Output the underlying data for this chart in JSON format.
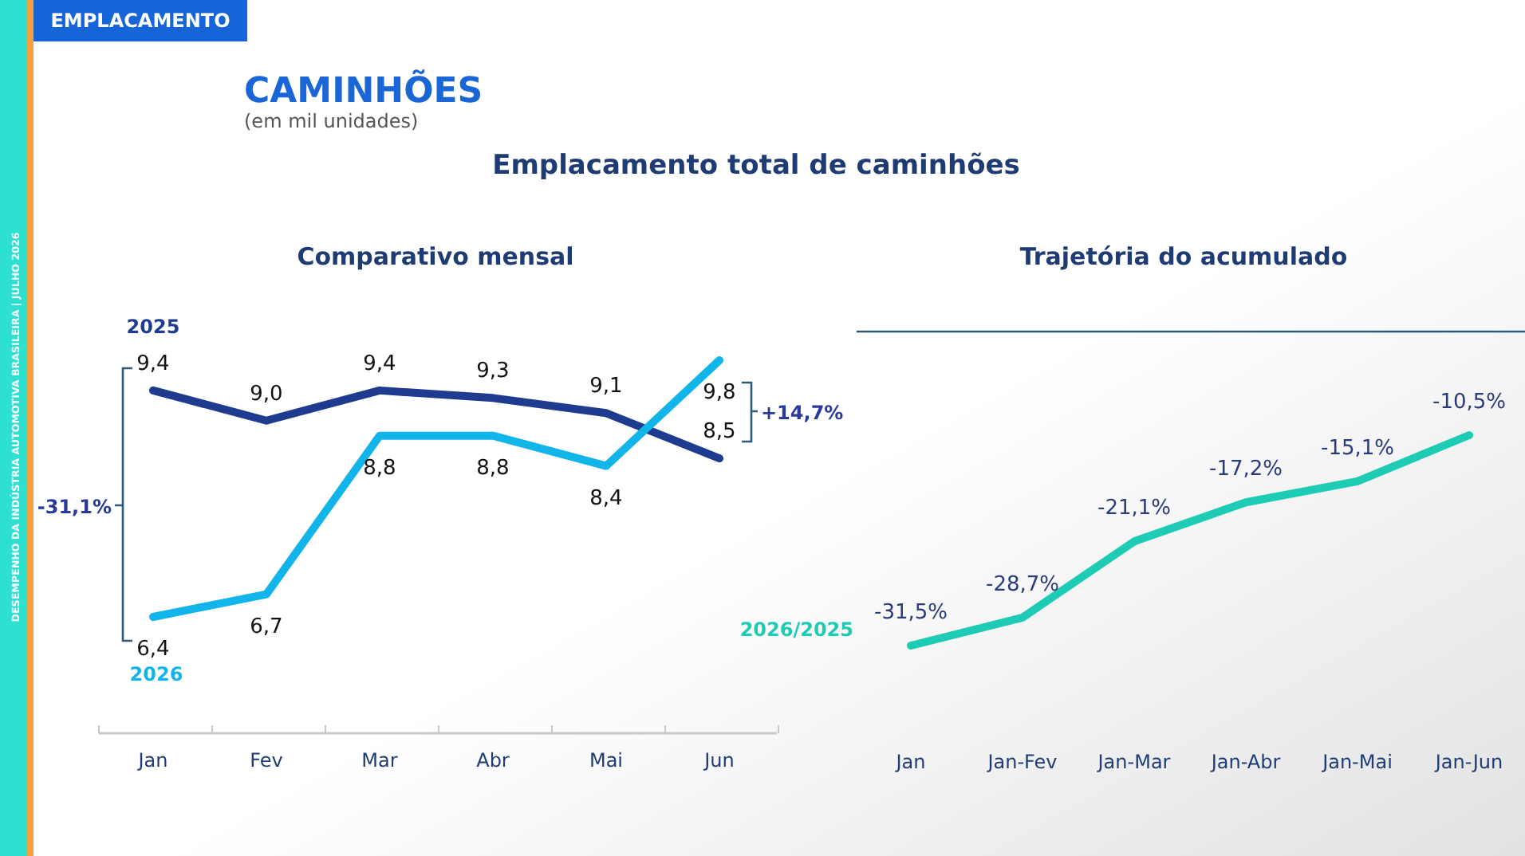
{
  "chart_data": [
    {
      "type": "line",
      "title": "Comparativo mensal",
      "categories": [
        "Jan",
        "Fev",
        "Mar",
        "Abr",
        "Mai",
        "Jun"
      ],
      "series": [
        {
          "name": "2025",
          "color": "#1f3b8f",
          "values": [
            9.4,
            9.0,
            9.4,
            9.3,
            9.1,
            8.5
          ],
          "value_labels": [
            "9,4",
            "9,0",
            "9,4",
            "9,3",
            "9,1",
            "8,5"
          ]
        },
        {
          "name": "2026",
          "color": "#12b5ea",
          "values": [
            6.4,
            6.7,
            8.8,
            8.8,
            8.4,
            9.8
          ],
          "value_labels": [
            "6,4",
            "6,7",
            "8,8",
            "8,8",
            "8,4",
            "9,8"
          ]
        }
      ],
      "annotations": [
        "EMPLACAMENTO",
        "CAMINHÕES",
        "(em mil unidades)",
        "Emplacamento total de caminhões",
        "DESEMPENHO DA INDÚSTRIA AUTOMOTIVA BRASILEIRA | JULHO 2026",
        "-31,1%",
        "+14,7%"
      ],
      "legend": false,
      "grid": false,
      "marker": "none"
    },
    {
      "type": "line",
      "title": "Trajetória do acumulado",
      "categories": [
        "Jan",
        "Jan-Fev",
        "Jan-Mar",
        "Jan-Abr",
        "Jan-Mai",
        "Jan-Jun"
      ],
      "series": [
        {
          "name": "2026/2025",
          "color": "#1ecbb5",
          "values": [
            -31.5,
            -28.7,
            -21.1,
            -17.2,
            -15.1,
            -10.5
          ],
          "value_labels": [
            "-31,5%",
            "-28,7%",
            "-21,1%",
            "-17,2%",
            "-15,1%",
            "-10,5%"
          ]
        }
      ],
      "legend": false,
      "grid": false,
      "marker": "none"
    }
  ]
}
